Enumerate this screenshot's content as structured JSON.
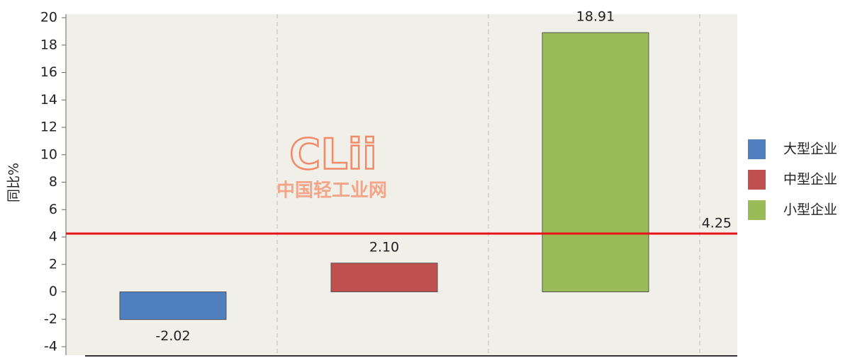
{
  "chart_data": {
    "type": "bar",
    "y_label": "同比%",
    "series": [
      {
        "name": "大型企业",
        "color": "#4f7fbf",
        "values": [
          -2.02
        ]
      },
      {
        "name": "中型企业",
        "color": "#c0504d",
        "values": [
          2.1
        ],
        "value_labels": [
          "2.10"
        ]
      },
      {
        "name": "小型企业",
        "color": "#9bbb59",
        "values": [
          18.91
        ]
      }
    ],
    "reference_line": {
      "value": 4.25,
      "color": "#e8141b"
    },
    "ylim": [
      -4,
      20
    ],
    "yticks": [
      -4,
      -2,
      0,
      2,
      4,
      6,
      8,
      10,
      12,
      14,
      16,
      18,
      20
    ],
    "legend": "right",
    "watermark": {
      "logo": "CLii",
      "text": "中国轻工业网"
    }
  }
}
